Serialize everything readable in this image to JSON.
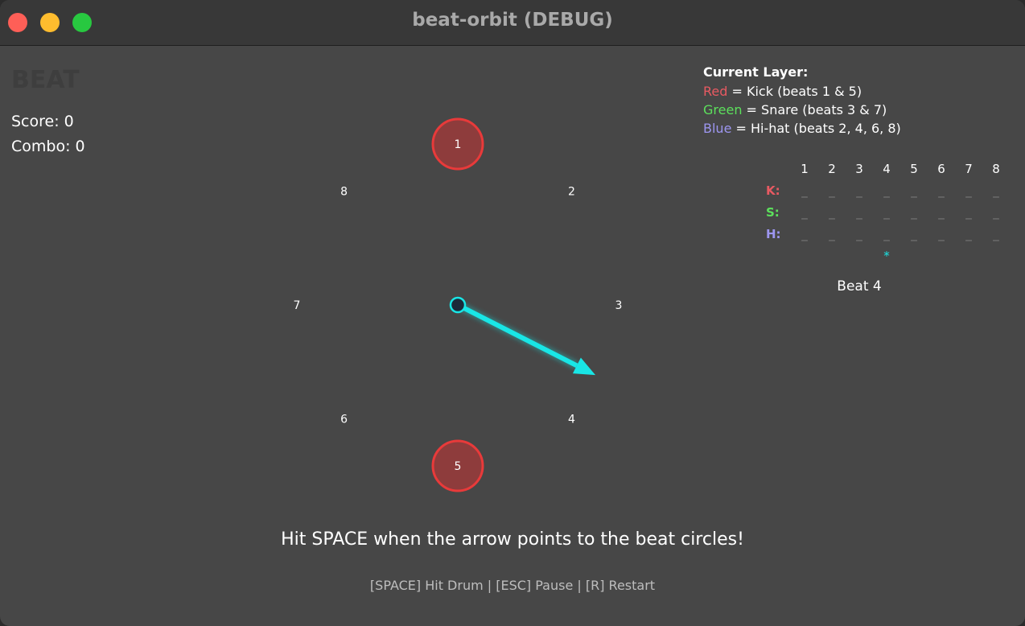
{
  "window": {
    "title": "beat-orbit (DEBUG)"
  },
  "hud": {
    "game_title": "BEAT",
    "score": "Score: 0",
    "combo": "Combo: 0"
  },
  "legend": {
    "title": "Current Layer:",
    "items": [
      {
        "color_word": "Red",
        "text": " = Kick (beats 1 & 5)",
        "color": "#e85a62"
      },
      {
        "color_word": "Green",
        "text": " = Snare (beats 3 & 7)",
        "color": "#5ce05c"
      },
      {
        "color_word": "Blue",
        "text": " = Hi-hat (beats 2, 4, 6, 8)",
        "color": "#9d96f0"
      }
    ]
  },
  "pattern_grid": {
    "columns": [
      "1",
      "2",
      "3",
      "4",
      "5",
      "6",
      "7",
      "8"
    ],
    "rows": [
      {
        "label": "K:",
        "color": "#e85a62",
        "cells": [
          "_",
          "_",
          "_",
          "_",
          "_",
          "_",
          "_",
          "_"
        ]
      },
      {
        "label": "S:",
        "color": "#5ce05c",
        "cells": [
          "_",
          "_",
          "_",
          "_",
          "_",
          "_",
          "_",
          "_"
        ]
      },
      {
        "label": "H:",
        "color": "#9d96f0",
        "cells": [
          "_",
          "_",
          "_",
          "_",
          "_",
          "_",
          "_",
          "_"
        ]
      }
    ],
    "marker": "*",
    "marker_beat": 4
  },
  "current_beat": "Beat 4",
  "orbit": {
    "beat_numbers": [
      "1",
      "2",
      "3",
      "4",
      "5",
      "6",
      "7",
      "8"
    ],
    "target_circles": [
      {
        "beat": "1",
        "color": "#e83a3a"
      },
      {
        "beat": "5",
        "color": "#e83a3a"
      }
    ],
    "arrow_beat_position": 3.6,
    "arrow_color": "#19e6e6"
  },
  "instruction": "Hit SPACE when the arrow points to the beat circles!",
  "controls": "[SPACE] Hit Drum | [ESC] Pause | [R] Restart"
}
